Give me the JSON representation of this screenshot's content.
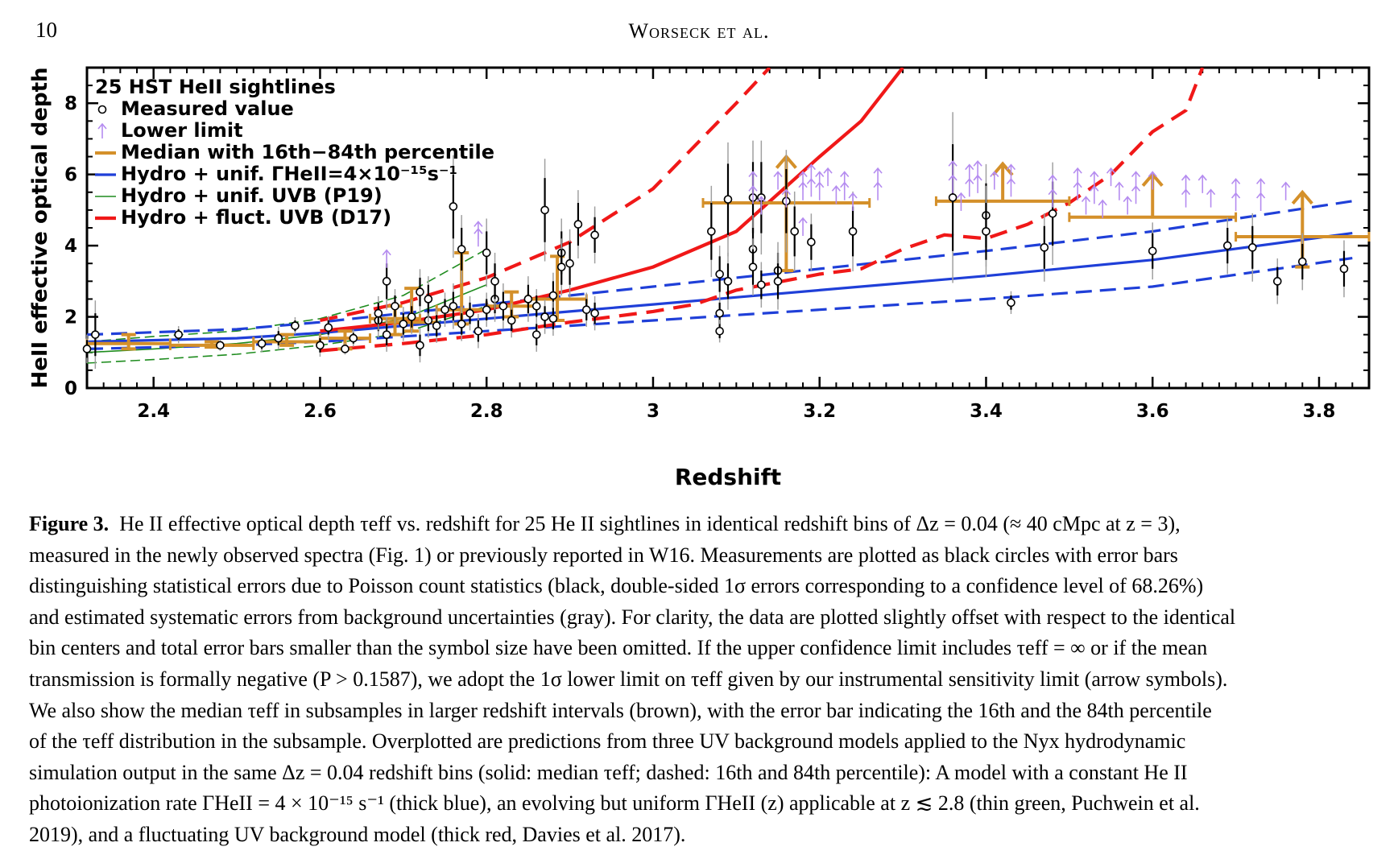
{
  "header": {
    "page_number": "10",
    "running_head": "Worseck et al."
  },
  "chart_data": {
    "type": "scatter",
    "xlabel": "Redshift",
    "ylabel": "HeII effective optical depth",
    "xlim": [
      2.32,
      3.86
    ],
    "ylim": [
      0,
      9
    ],
    "x_ticks": [
      "2.4",
      "2.6",
      "2.8",
      "3",
      "3.2",
      "3.4",
      "3.6",
      "3.8"
    ],
    "x_tick_values": [
      2.4,
      2.6,
      2.8,
      3.0,
      3.2,
      3.4,
      3.6,
      3.8
    ],
    "y_ticks": [
      "0",
      "2",
      "4",
      "6",
      "8"
    ],
    "y_tick_values": [
      0,
      2,
      4,
      6,
      8
    ],
    "legend": {
      "placement": "top-left",
      "items": [
        {
          "text": "25 HST HeII sightlines",
          "key": "none"
        },
        {
          "text": "Measured value",
          "key": "circle"
        },
        {
          "text": "Lower limit",
          "key": "arrow"
        },
        {
          "text": "Median with 16th−84th percentile",
          "key": "median"
        },
        {
          "text": "Hydro + unif. ΓHeII=4×10⁻¹⁵s⁻¹",
          "key": "blue"
        },
        {
          "text": "Hydro + unif. UVB (P19)",
          "key": "green"
        },
        {
          "text": "Hydro + fluct. UVB (D17)",
          "key": "red"
        }
      ]
    },
    "colors": {
      "measured": "#000000",
      "syserr": "#a0a0a0",
      "limit": "#b58cf0",
      "median": "#d4902a",
      "hydro_blue": "#1f3fd8",
      "hydro_green": "#1e8c1e",
      "hydro_red": "#f01818"
    },
    "measured": [
      {
        "x": 2.32,
        "y": 1.1,
        "e": 0.25
      },
      {
        "x": 2.33,
        "y": 1.5,
        "e": 0.6
      },
      {
        "x": 2.43,
        "y": 1.5,
        "e": 0.15
      },
      {
        "x": 2.48,
        "y": 1.2,
        "e": 0.1
      },
      {
        "x": 2.53,
        "y": 1.25,
        "e": 0.15
      },
      {
        "x": 2.55,
        "y": 1.4,
        "e": 0.2
      },
      {
        "x": 2.57,
        "y": 1.75,
        "e": 0.15
      },
      {
        "x": 2.6,
        "y": 1.2,
        "e": 0.2
      },
      {
        "x": 2.61,
        "y": 1.7,
        "e": 0.2
      },
      {
        "x": 2.63,
        "y": 1.1,
        "e": 0.1
      },
      {
        "x": 2.64,
        "y": 1.4,
        "e": 0.15
      },
      {
        "x": 2.67,
        "y": 1.9,
        "e": 0.3
      },
      {
        "x": 2.67,
        "y": 2.1,
        "e": 0.3
      },
      {
        "x": 2.68,
        "y": 1.5,
        "e": 0.3
      },
      {
        "x": 2.68,
        "y": 3.0,
        "e": 0.5
      },
      {
        "x": 2.69,
        "y": 2.3,
        "e": 0.3
      },
      {
        "x": 2.7,
        "y": 1.8,
        "e": 0.3
      },
      {
        "x": 2.71,
        "y": 2.0,
        "e": 0.3
      },
      {
        "x": 2.72,
        "y": 1.2,
        "e": 0.3
      },
      {
        "x": 2.72,
        "y": 2.7,
        "e": 0.4
      },
      {
        "x": 2.73,
        "y": 1.9,
        "e": 0.3
      },
      {
        "x": 2.73,
        "y": 2.5,
        "e": 0.4
      },
      {
        "x": 2.74,
        "y": 1.75,
        "e": 0.3
      },
      {
        "x": 2.75,
        "y": 2.2,
        "e": 0.3
      },
      {
        "x": 2.76,
        "y": 5.1,
        "e": 0.9
      },
      {
        "x": 2.76,
        "y": 2.3,
        "e": 0.4
      },
      {
        "x": 2.77,
        "y": 3.9,
        "e": 0.6
      },
      {
        "x": 2.77,
        "y": 1.8,
        "e": 0.3
      },
      {
        "x": 2.78,
        "y": 2.1,
        "e": 0.3
      },
      {
        "x": 2.79,
        "y": 1.6,
        "e": 0.3
      },
      {
        "x": 2.8,
        "y": 2.2,
        "e": 0.3
      },
      {
        "x": 2.8,
        "y": 3.8,
        "e": 0.6
      },
      {
        "x": 2.81,
        "y": 2.5,
        "e": 0.4
      },
      {
        "x": 2.81,
        "y": 3.0,
        "e": 0.5
      },
      {
        "x": 2.82,
        "y": 2.3,
        "e": 0.4
      },
      {
        "x": 2.83,
        "y": 1.9,
        "e": 0.3
      },
      {
        "x": 2.85,
        "y": 2.5,
        "e": 0.4
      },
      {
        "x": 2.86,
        "y": 2.3,
        "e": 0.3
      },
      {
        "x": 2.86,
        "y": 1.5,
        "e": 0.3
      },
      {
        "x": 2.87,
        "y": 2.0,
        "e": 0.3
      },
      {
        "x": 2.88,
        "y": 2.6,
        "e": 0.4
      },
      {
        "x": 2.88,
        "y": 1.95,
        "e": 0.3
      },
      {
        "x": 2.89,
        "y": 3.8,
        "e": 0.6
      },
      {
        "x": 2.89,
        "y": 3.4,
        "e": 0.5
      },
      {
        "x": 2.9,
        "y": 3.5,
        "e": 0.6
      },
      {
        "x": 2.87,
        "y": 5.0,
        "e": 0.9
      },
      {
        "x": 2.91,
        "y": 4.6,
        "e": 0.6
      },
      {
        "x": 2.92,
        "y": 2.2,
        "e": 0.3
      },
      {
        "x": 2.93,
        "y": 4.3,
        "e": 0.5
      },
      {
        "x": 2.93,
        "y": 2.1,
        "e": 0.3
      },
      {
        "x": 3.07,
        "y": 4.4,
        "e": 0.8
      },
      {
        "x": 3.08,
        "y": 3.2,
        "e": 0.5
      },
      {
        "x": 3.08,
        "y": 2.1,
        "e": 0.3
      },
      {
        "x": 3.08,
        "y": 1.6,
        "e": 0.2
      },
      {
        "x": 3.09,
        "y": 3.0,
        "e": 0.5
      },
      {
        "x": 3.09,
        "y": 5.3,
        "e": 1.0
      },
      {
        "x": 3.12,
        "y": 5.35,
        "e": 1.0
      },
      {
        "x": 3.12,
        "y": 3.9,
        "e": 0.6
      },
      {
        "x": 3.12,
        "y": 3.4,
        "e": 0.5
      },
      {
        "x": 3.13,
        "y": 5.35,
        "e": 1.0
      },
      {
        "x": 3.13,
        "y": 2.9,
        "e": 0.4
      },
      {
        "x": 3.15,
        "y": 3.3,
        "e": 0.5
      },
      {
        "x": 3.15,
        "y": 3.0,
        "e": 0.5
      },
      {
        "x": 3.16,
        "y": 5.25,
        "e": 0.9
      },
      {
        "x": 3.17,
        "y": 4.4,
        "e": 0.7
      },
      {
        "x": 3.19,
        "y": 4.1,
        "e": 0.5
      },
      {
        "x": 3.24,
        "y": 4.4,
        "e": 0.7
      },
      {
        "x": 3.36,
        "y": 5.35,
        "e": 1.5
      },
      {
        "x": 3.4,
        "y": 4.85,
        "e": 0.9
      },
      {
        "x": 3.4,
        "y": 4.4,
        "e": 0.8
      },
      {
        "x": 3.43,
        "y": 2.4,
        "e": 0.2
      },
      {
        "x": 3.47,
        "y": 3.95,
        "e": 0.6
      },
      {
        "x": 3.48,
        "y": 4.9,
        "e": 0.9
      },
      {
        "x": 3.6,
        "y": 3.85,
        "e": 0.5
      },
      {
        "x": 3.69,
        "y": 4.0,
        "e": 0.5
      },
      {
        "x": 3.72,
        "y": 3.95,
        "e": 0.6
      },
      {
        "x": 3.75,
        "y": 3.0,
        "e": 0.4
      },
      {
        "x": 3.78,
        "y": 3.55,
        "e": 0.5
      },
      {
        "x": 3.83,
        "y": 3.35,
        "e": 0.5
      }
    ],
    "lower_limits": [
      {
        "x": 2.68,
        "y": 3.6
      },
      {
        "x": 2.79,
        "y": 4.4
      },
      {
        "x": 2.79,
        "y": 4.2
      },
      {
        "x": 3.12,
        "y": 5.8
      },
      {
        "x": 3.12,
        "y": 5.4
      },
      {
        "x": 3.13,
        "y": 5.1
      },
      {
        "x": 3.15,
        "y": 5.8
      },
      {
        "x": 3.16,
        "y": 5.3
      },
      {
        "x": 3.18,
        "y": 5.8
      },
      {
        "x": 3.18,
        "y": 5.5
      },
      {
        "x": 3.19,
        "y": 6.0
      },
      {
        "x": 3.19,
        "y": 5.6
      },
      {
        "x": 3.2,
        "y": 5.8
      },
      {
        "x": 3.2,
        "y": 5.5
      },
      {
        "x": 3.18,
        "y": 4.5
      },
      {
        "x": 3.21,
        "y": 5.9
      },
      {
        "x": 3.22,
        "y": 5.4
      },
      {
        "x": 3.23,
        "y": 5.8
      },
      {
        "x": 3.23,
        "y": 5.5
      },
      {
        "x": 3.24,
        "y": 5.2
      },
      {
        "x": 3.27,
        "y": 5.9
      },
      {
        "x": 3.27,
        "y": 5.5
      },
      {
        "x": 3.36,
        "y": 6.1
      },
      {
        "x": 3.36,
        "y": 5.7
      },
      {
        "x": 3.37,
        "y": 5.2
      },
      {
        "x": 3.38,
        "y": 6.0
      },
      {
        "x": 3.38,
        "y": 5.6
      },
      {
        "x": 3.39,
        "y": 6.1
      },
      {
        "x": 3.39,
        "y": 5.7
      },
      {
        "x": 3.41,
        "y": 5.8
      },
      {
        "x": 3.43,
        "y": 6.0
      },
      {
        "x": 3.43,
        "y": 5.6
      },
      {
        "x": 3.48,
        "y": 5.7
      },
      {
        "x": 3.48,
        "y": 5.3
      },
      {
        "x": 3.51,
        "y": 5.9
      },
      {
        "x": 3.51,
        "y": 5.5
      },
      {
        "x": 3.52,
        "y": 5.1
      },
      {
        "x": 3.53,
        "y": 5.8
      },
      {
        "x": 3.53,
        "y": 5.4
      },
      {
        "x": 3.54,
        "y": 5.0
      },
      {
        "x": 3.55,
        "y": 5.9
      },
      {
        "x": 3.56,
        "y": 5.5
      },
      {
        "x": 3.57,
        "y": 5.1
      },
      {
        "x": 3.58,
        "y": 5.8
      },
      {
        "x": 3.58,
        "y": 5.4
      },
      {
        "x": 3.6,
        "y": 5.8
      },
      {
        "x": 3.64,
        "y": 5.7
      },
      {
        "x": 3.64,
        "y": 5.3
      },
      {
        "x": 3.66,
        "y": 5.7
      },
      {
        "x": 3.67,
        "y": 5.3
      },
      {
        "x": 3.7,
        "y": 5.6
      },
      {
        "x": 3.7,
        "y": 5.2
      },
      {
        "x": 3.73,
        "y": 5.6
      },
      {
        "x": 3.73,
        "y": 5.2
      },
      {
        "x": 3.76,
        "y": 5.5
      }
    ],
    "medians": [
      {
        "xlo": 2.32,
        "xhi": 2.42,
        "y": 1.25,
        "ylo": 1.1,
        "yhi": 1.5,
        "lim": false
      },
      {
        "xlo": 2.42,
        "xhi": 2.52,
        "y": 1.2,
        "ylo": 1.15,
        "yhi": 1.3,
        "lim": false
      },
      {
        "xlo": 2.52,
        "xhi": 2.6,
        "y": 1.3,
        "ylo": 1.2,
        "yhi": 1.5,
        "lim": false
      },
      {
        "xlo": 2.6,
        "xhi": 2.66,
        "y": 1.4,
        "ylo": 1.1,
        "yhi": 1.6,
        "lim": false
      },
      {
        "xlo": 2.66,
        "xhi": 2.72,
        "y": 1.95,
        "ylo": 1.5,
        "yhi": 2.3,
        "lim": false
      },
      {
        "xlo": 2.68,
        "xhi": 2.74,
        "y": 1.85,
        "ylo": 1.6,
        "yhi": 2.8,
        "lim": false
      },
      {
        "xlo": 2.74,
        "xhi": 2.8,
        "y": 2.2,
        "ylo": 1.8,
        "yhi": 3.8,
        "lim": false
      },
      {
        "xlo": 2.8,
        "xhi": 2.86,
        "y": 2.3,
        "ylo": 2.0,
        "yhi": 2.7,
        "lim": false
      },
      {
        "xlo": 2.85,
        "xhi": 2.92,
        "y": 2.5,
        "ylo": 1.9,
        "yhi": 3.7,
        "lim": false
      },
      {
        "xlo": 3.06,
        "xhi": 3.26,
        "y": 5.2,
        "ylo": 3.3,
        "yhi": 6.5,
        "lim": true
      },
      {
        "xlo": 3.34,
        "xhi": 3.5,
        "y": 5.25,
        "ylo": 5.25,
        "yhi": 6.3,
        "lim": true
      },
      {
        "xlo": 3.5,
        "xhi": 3.7,
        "y": 4.8,
        "ylo": 4.8,
        "yhi": 6.0,
        "lim": true
      },
      {
        "xlo": 3.7,
        "xhi": 3.86,
        "y": 4.25,
        "ylo": 3.4,
        "yhi": 5.5,
        "lim": true
      }
    ],
    "models": {
      "blue": {
        "median": [
          [
            2.32,
            1.3
          ],
          [
            2.5,
            1.4
          ],
          [
            2.6,
            1.55
          ],
          [
            2.7,
            1.75
          ],
          [
            2.8,
            1.95
          ],
          [
            2.9,
            2.15
          ],
          [
            3.0,
            2.35
          ],
          [
            3.2,
            2.75
          ],
          [
            3.4,
            3.15
          ],
          [
            3.6,
            3.6
          ],
          [
            3.84,
            4.35
          ]
        ],
        "p16": [
          [
            2.32,
            1.1
          ],
          [
            2.5,
            1.2
          ],
          [
            2.6,
            1.3
          ],
          [
            2.7,
            1.45
          ],
          [
            2.8,
            1.6
          ],
          [
            2.9,
            1.75
          ],
          [
            3.0,
            1.9
          ],
          [
            3.2,
            2.2
          ],
          [
            3.4,
            2.5
          ],
          [
            3.6,
            2.85
          ],
          [
            3.84,
            3.65
          ]
        ],
        "p84": [
          [
            2.32,
            1.5
          ],
          [
            2.5,
            1.65
          ],
          [
            2.6,
            1.85
          ],
          [
            2.7,
            2.1
          ],
          [
            2.8,
            2.35
          ],
          [
            2.9,
            2.6
          ],
          [
            3.0,
            2.85
          ],
          [
            3.2,
            3.35
          ],
          [
            3.4,
            3.85
          ],
          [
            3.6,
            4.4
          ],
          [
            3.84,
            5.25
          ]
        ]
      },
      "green": {
        "median": [
          [
            2.32,
            1.0
          ],
          [
            2.4,
            1.1
          ],
          [
            2.5,
            1.25
          ],
          [
            2.6,
            1.5
          ],
          [
            2.7,
            1.95
          ],
          [
            2.8,
            2.9
          ]
        ],
        "p16": [
          [
            2.32,
            0.7
          ],
          [
            2.4,
            0.8
          ],
          [
            2.5,
            0.95
          ],
          [
            2.6,
            1.2
          ],
          [
            2.7,
            1.55
          ],
          [
            2.8,
            2.3
          ]
        ],
        "p84": [
          [
            2.32,
            1.3
          ],
          [
            2.4,
            1.45
          ],
          [
            2.5,
            1.6
          ],
          [
            2.6,
            1.95
          ],
          [
            2.7,
            2.6
          ],
          [
            2.8,
            3.9
          ]
        ]
      },
      "red": {
        "median": [
          [
            2.6,
            1.6
          ],
          [
            2.7,
            1.85
          ],
          [
            2.8,
            2.2
          ],
          [
            2.9,
            2.75
          ],
          [
            3.0,
            3.4
          ],
          [
            3.1,
            4.4
          ],
          [
            3.2,
            6.5
          ],
          [
            3.25,
            7.5
          ],
          [
            3.3,
            9.0
          ]
        ],
        "p16": [
          [
            2.6,
            1.05
          ],
          [
            2.7,
            1.25
          ],
          [
            2.8,
            1.5
          ],
          [
            2.9,
            1.85
          ],
          [
            3.0,
            2.15
          ],
          [
            3.05,
            2.35
          ],
          [
            3.1,
            2.75
          ],
          [
            3.2,
            3.2
          ],
          [
            3.25,
            3.35
          ],
          [
            3.3,
            3.9
          ],
          [
            3.35,
            4.3
          ],
          [
            3.4,
            4.2
          ],
          [
            3.45,
            4.6
          ],
          [
            3.5,
            5.2
          ],
          [
            3.55,
            6.0
          ],
          [
            3.6,
            7.2
          ],
          [
            3.64,
            7.8
          ],
          [
            3.66,
            9.0
          ]
        ],
        "p84": [
          [
            2.6,
            1.9
          ],
          [
            2.7,
            2.4
          ],
          [
            2.8,
            3.1
          ],
          [
            2.9,
            4.1
          ],
          [
            3.0,
            5.6
          ],
          [
            3.05,
            6.8
          ],
          [
            3.1,
            8.0
          ],
          [
            3.14,
            9.0
          ]
        ]
      }
    }
  },
  "caption": {
    "label": "Figure 3.",
    "lines": [
      "He II effective optical depth τeff vs. redshift for 25 He II sightlines in identical redshift bins of Δz = 0.04 (≈ 40 cMpc at z = 3),",
      "measured in the newly observed spectra (Fig. 1) or previously reported in W16. Measurements are plotted as black circles with error bars",
      "distinguishing statistical errors due to Poisson count statistics (black, double-sided 1σ errors corresponding to a confidence level of 68.26%)",
      "and estimated systematic errors from background uncertainties (gray). For clarity, the data are plotted slightly offset with respect to the identical",
      "bin centers and total error bars smaller than the symbol size have been omitted. If the upper confidence limit includes τeff = ∞ or if the mean",
      "transmission is formally negative (P > 0.1587), we adopt the 1σ lower limit on τeff given by our instrumental sensitivity limit (arrow symbols).",
      "We also show the median τeff in subsamples in larger redshift intervals (brown), with the error bar indicating the 16th and the 84th percentile",
      "of the τeff distribution in the subsample. Overplotted are predictions from three UV background models applied to the Nyx hydrodynamic",
      "simulation output in the same Δz = 0.04 redshift bins (solid: median τeff; dashed: 16th and 84th percentile): A model with a constant He II",
      "photoionization rate ΓHeII = 4 × 10⁻¹⁵ s⁻¹ (thick blue), an evolving but uniform ΓHeII (z) applicable at z ≲ 2.8 (thin green, Puchwein et al.",
      "2019), and a fluctuating UV background model (thick red, Davies et al. 2017)."
    ]
  }
}
